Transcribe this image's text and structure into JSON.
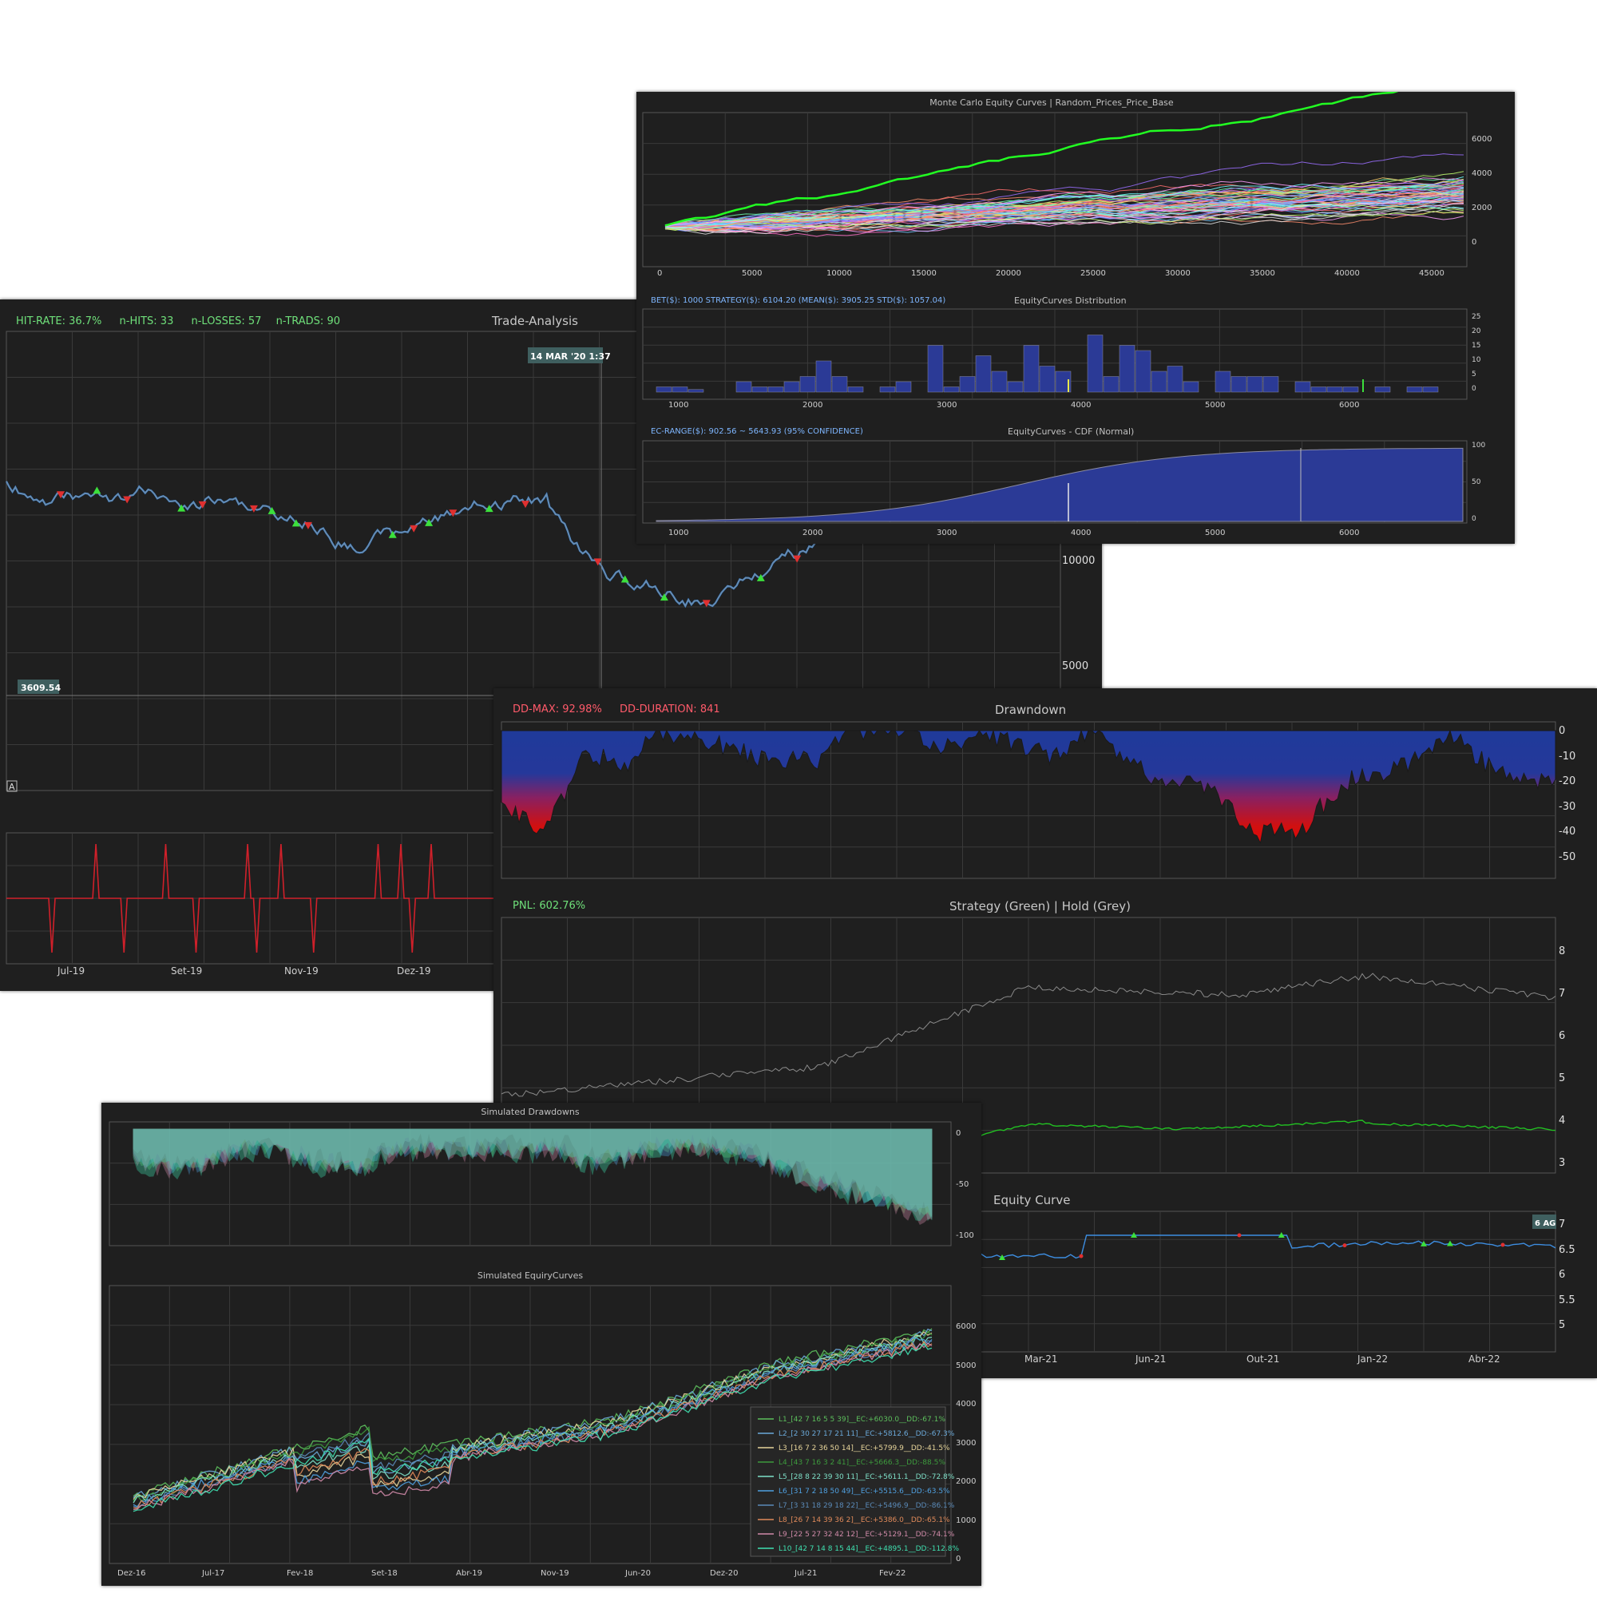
{
  "colors": {
    "bg": "#1f1f1f",
    "plot": "#262626",
    "grid": "#3a3a3a",
    "green": "#6fe07a",
    "red": "#ff5a6a",
    "blue_fill": "#2b3a96",
    "label_blue": "#7eb6ff",
    "price_blue": "#3d8de0",
    "text_grey": "#bdbdbd"
  },
  "trade": {
    "stats": {
      "hit_rate": "HIT-RATE: 36.7%",
      "hits": "n-HITS: 33",
      "losses": "n-LOSSES: 57",
      "trads": "n-TRADS: 90"
    },
    "title": "Trade-Analysis",
    "cursor_date": "14 MAR '20  1:37",
    "cursor_value": "3609.54",
    "y_ticks": [
      "10000",
      "5000"
    ],
    "x_ticks": [
      "Jul-19",
      "Set-19",
      "Nov-19",
      "Dez-19"
    ],
    "corner_button": "A"
  },
  "monte": {
    "title": "Monte Carlo Equity Curves | Random_Prices_Price_Base",
    "x_ticks": [
      "0",
      "5000",
      "10000",
      "15000",
      "20000",
      "25000",
      "30000",
      "35000",
      "40000",
      "45000"
    ],
    "y_ticks": [
      "6000",
      "4000",
      "2000",
      "0"
    ],
    "dist_stats": "BET($): 1000   STRATEGY($): 6104.20   (MEAN($): 3905.25   STD($): 1057.04)",
    "dist_title": "EquityCurves Distribution",
    "dist_x_ticks": [
      "1000",
      "2000",
      "3000",
      "4000",
      "5000",
      "6000"
    ],
    "dist_y_ticks": [
      "25",
      "20",
      "15",
      "10",
      "5",
      "0"
    ],
    "cdf_stats": "EC-RANGE($): 902.56 ~ 5643.93 (95% CONFIDENCE)",
    "cdf_title": "EquityCurves - CDF (Normal)",
    "cdf_x_ticks": [
      "1000",
      "2000",
      "3000",
      "4000",
      "5000",
      "6000"
    ],
    "cdf_y_ticks": [
      "100",
      "50",
      "0"
    ]
  },
  "drawdown": {
    "max": "DD-MAX: 92.98%",
    "duration": "DD-DURATION: 841",
    "title": "Drawndown",
    "y_ticks": [
      "0",
      "-10",
      "-20",
      "-30",
      "-40",
      "-50"
    ]
  },
  "strategy": {
    "pnl": "PNL: 602.76%",
    "title": "Strategy (Green) | Hold (Grey)",
    "y_ticks": [
      "8",
      "7",
      "6",
      "5",
      "4",
      "3"
    ]
  },
  "equity": {
    "title": "Equity Curve",
    "date_tag": "6 AG",
    "y_ticks": [
      "7",
      "6.5",
      "6",
      "5.5",
      "5"
    ],
    "x_ticks": [
      "Mar-21",
      "Jun-21",
      "Out-21",
      "Jan-22",
      "Abr-22"
    ]
  },
  "sim": {
    "dd_title": "Simulated Drawdowns",
    "dd_y_ticks": [
      "0",
      "-50",
      "-100"
    ],
    "ec_title": "Simulated EquiryCurves",
    "ec_y_ticks": [
      "6000",
      "5000",
      "4000",
      "3000",
      "2000",
      "1000",
      "0"
    ],
    "x_ticks": [
      "Dez-16",
      "Jul-17",
      "Fev-18",
      "Set-18",
      "Abr-19",
      "Nov-19",
      "Jun-20",
      "Dez-20",
      "Jul-21",
      "Fev-22"
    ],
    "legend": [
      {
        "label": "L1_[42 7 16 5 5 39]__EC:+6030.0__DD:-67.1%",
        "color": "#5cbf5c"
      },
      {
        "label": "L2_[2 30 27 17 21 11]__EC:+5812.6__DD:-67.3%",
        "color": "#6aa8d8"
      },
      {
        "label": "L3_[16 7 2 36 50 14]__EC:+5799.9__DD:-41.5%",
        "color": "#e6d49a"
      },
      {
        "label": "L4_[43 7 16 3 2 41]__EC:+5666.3__DD:-88.5%",
        "color": "#3d9a3d"
      },
      {
        "label": "L5_[28 8 22 39 30 11]__EC:+5611.1__DD:-72.8%",
        "color": "#7ee0c8"
      },
      {
        "label": "L6_[31 7 2 18 50 49]__EC:+5515.6__DD:-63.5%",
        "color": "#4fa0e0"
      },
      {
        "label": "L7_[3 31 18 29 18 22]__EC:+5496.9__DD:-86.1%",
        "color": "#5a8ab8"
      },
      {
        "label": "L8_[26 7 14 39 36 2]__EC:+5386.0__DD:-65.1%",
        "color": "#e08a5a"
      },
      {
        "label": "L9_[22 5 27 32 42 12]__EC:+5129.1__DD:-74.1%",
        "color": "#d08aa8"
      },
      {
        "label": "L10_[42 7 14 8 15 44]__EC:+4895.1__DD:-112.8%",
        "color": "#3fe0b0"
      }
    ]
  }
}
